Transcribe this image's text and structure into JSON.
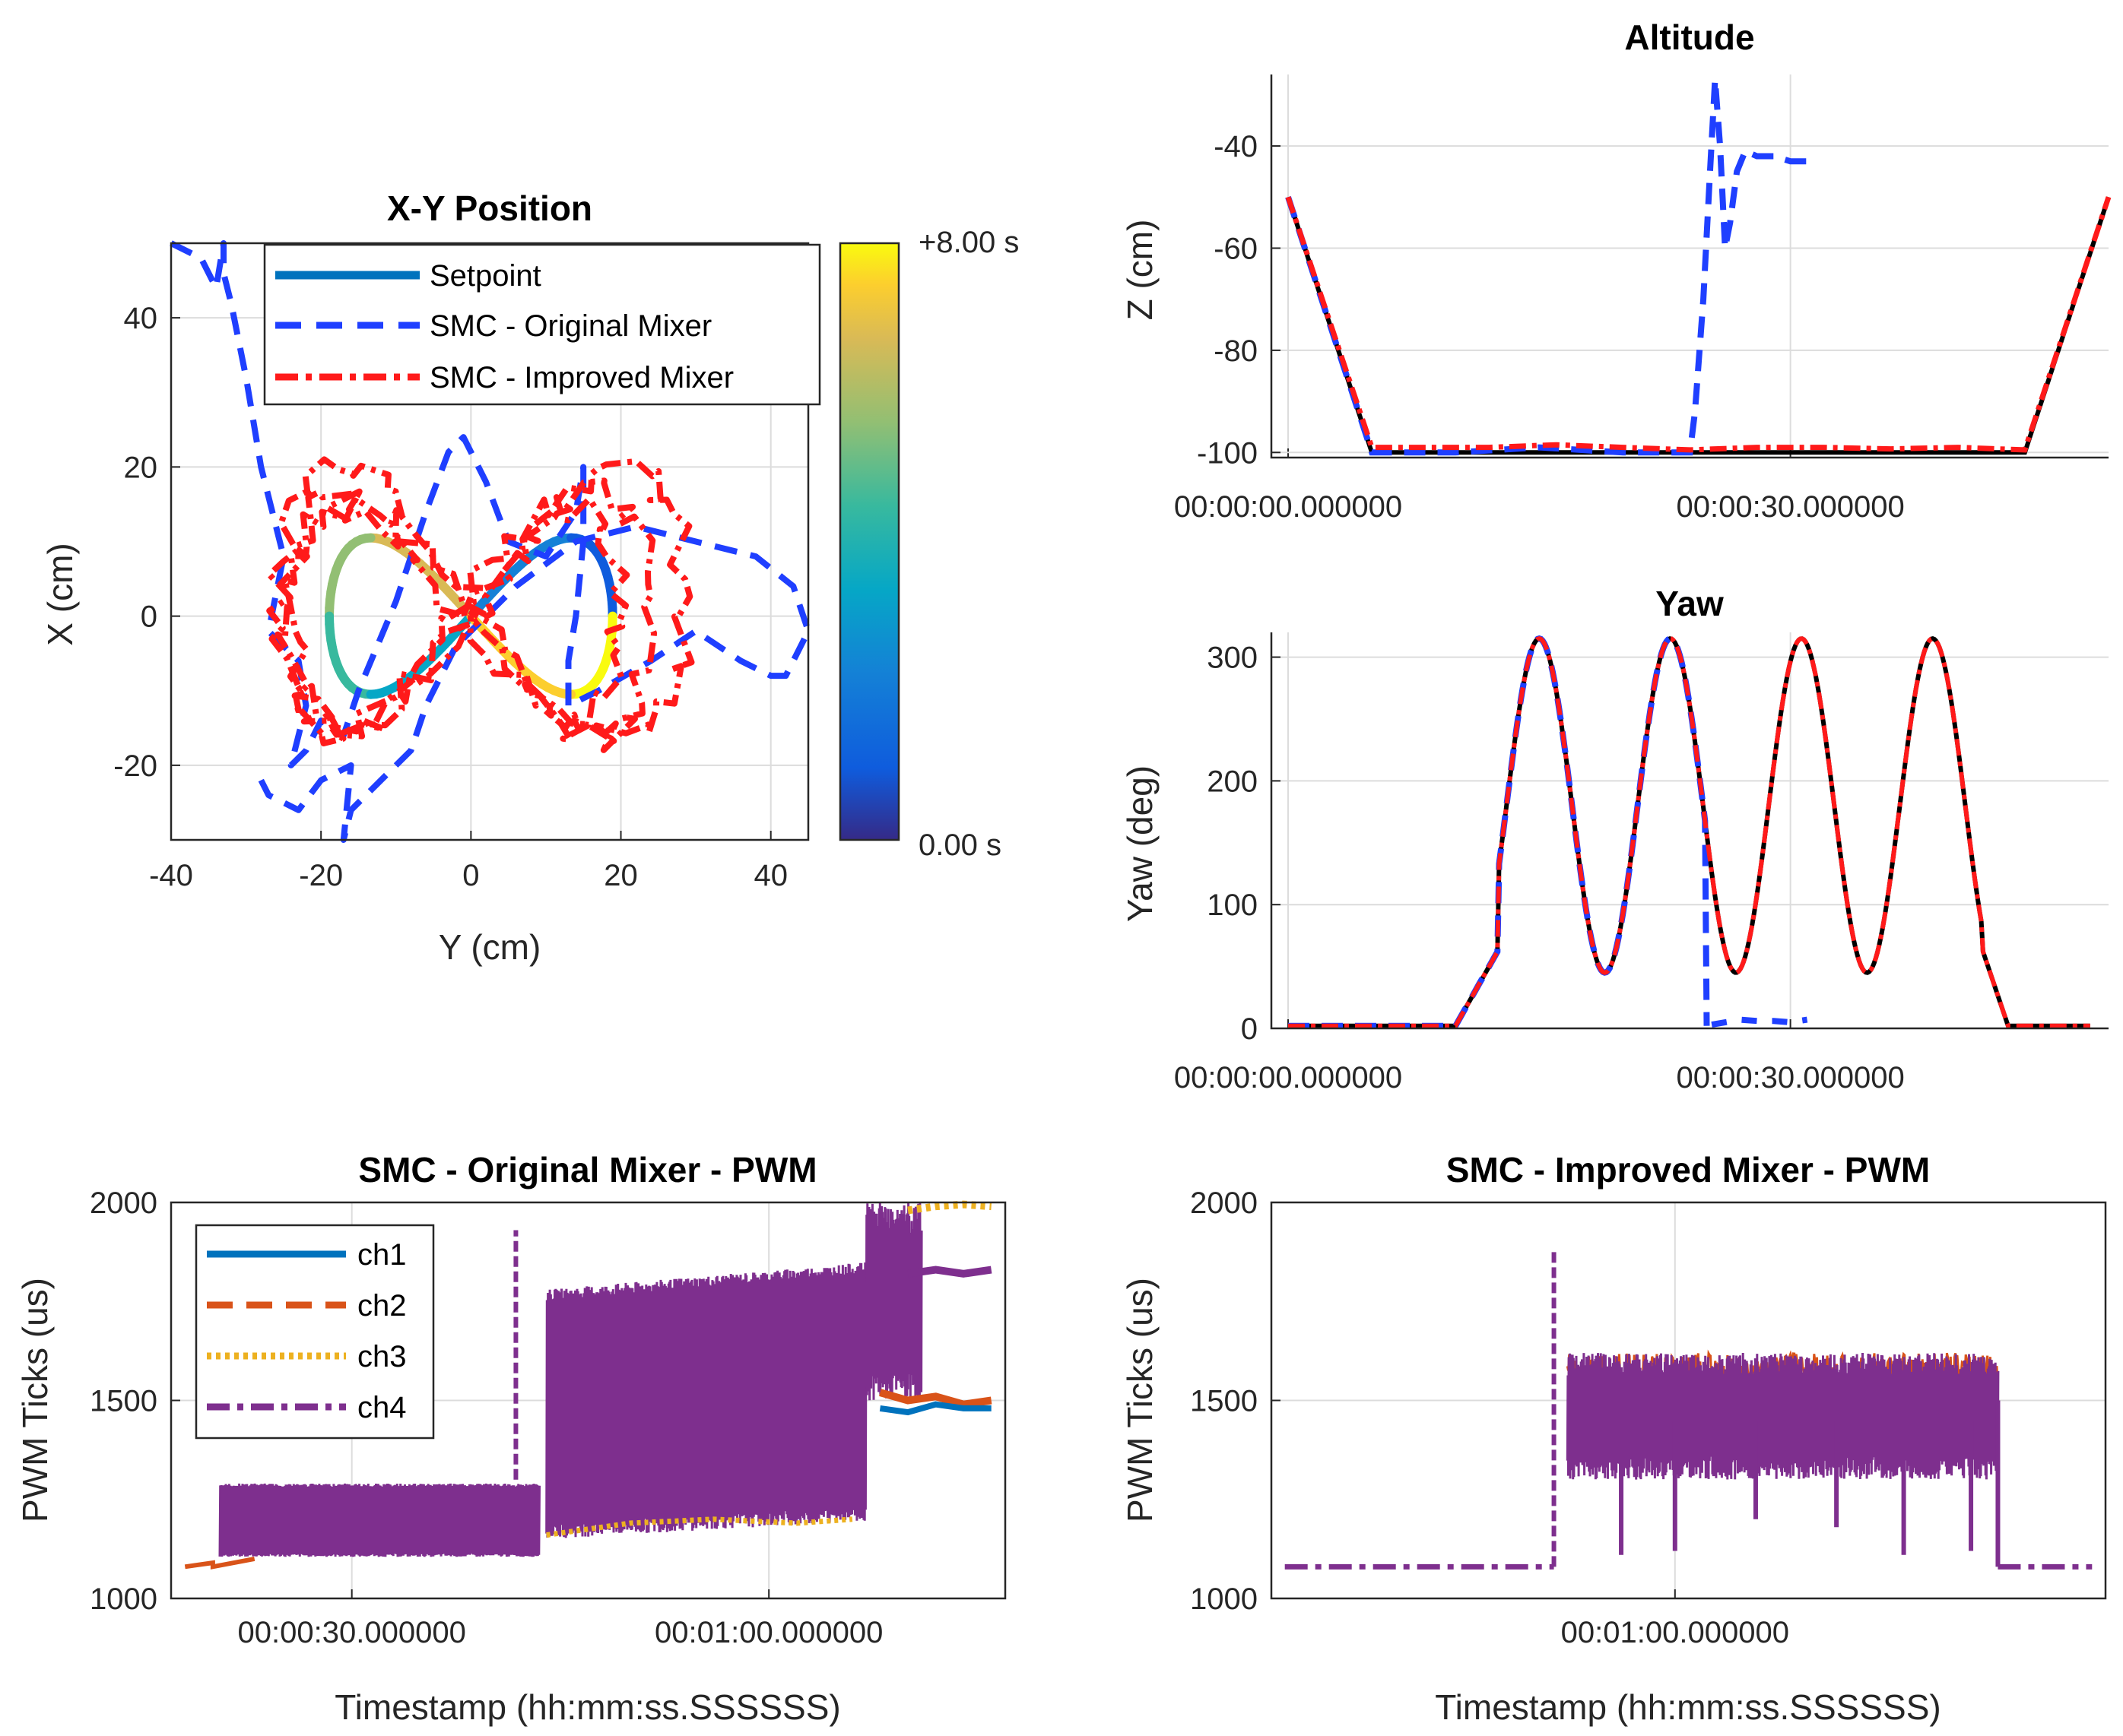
{
  "chart_data": [
    {
      "id": "xy",
      "type": "line",
      "title": "X-Y Position",
      "xlabel": "Y (cm)",
      "ylabel": "X (cm)",
      "xlim": [
        -40,
        45
      ],
      "ylim": [
        -30,
        50
      ],
      "xticks": [
        -40,
        -20,
        0,
        20,
        40
      ],
      "xtick_labels": [
        "-40",
        "-20",
        "0",
        "20",
        "40"
      ],
      "yticks": [
        -20,
        0,
        20,
        40
      ],
      "ytick_labels": [
        "-20",
        "0",
        "20",
        "40"
      ],
      "grid": true,
      "legend_position": "top",
      "colorbar": {
        "top_label": "+8.00 s",
        "bottom_label": "0.00 s",
        "colormap": "parula"
      },
      "series": [
        {
          "name": "Setpoint",
          "style": "solid",
          "color": "#0072BD",
          "kind": "lemniscate",
          "a": 30,
          "b": 10,
          "colored_by_time": true
        },
        {
          "name": "SMC - Original Mixer",
          "style": "dashed",
          "color": "#1f3fff",
          "x": [
            -40,
            -36,
            -34,
            -33,
            -33,
            -32,
            -30,
            -28,
            -25,
            -27,
            -23,
            -22,
            -24,
            -22,
            -20,
            -17,
            -15,
            -10,
            -6,
            -3,
            -1,
            2,
            5,
            10,
            14,
            15,
            15,
            14,
            13,
            13,
            17,
            24,
            30,
            36,
            40,
            42,
            45,
            43,
            38,
            30,
            22,
            14,
            6,
            -2,
            -6,
            -8,
            -12,
            -16,
            -17,
            -16,
            -20,
            -23,
            -27,
            -28
          ],
          "y": [
            50,
            48,
            44,
            50,
            46,
            42,
            32,
            20,
            8,
            -2,
            -6,
            -12,
            -20,
            -18,
            -14,
            -16,
            -10,
            2,
            14,
            22,
            24,
            18,
            10,
            8,
            14,
            20,
            10,
            0,
            -6,
            -12,
            -10,
            -6,
            -2,
            -6,
            -8,
            -8,
            -2,
            4,
            8,
            10,
            12,
            10,
            4,
            -4,
            -12,
            -18,
            -22,
            -26,
            -30,
            -20,
            -22,
            -26,
            -24,
            -22
          ]
        },
        {
          "name": "SMC - Improved Mixer",
          "style": "dashdot",
          "color": "#ff1a1a",
          "kind": "perturbed_lemniscate",
          "a": 30,
          "b": 10,
          "loops": 3
        }
      ]
    },
    {
      "id": "altitude",
      "type": "line",
      "title": "Altitude",
      "xlabel": "",
      "ylabel": "Z (cm)",
      "xlim": [
        -1,
        49
      ],
      "ylim": [
        -101,
        -26
      ],
      "xticks": [
        0,
        30
      ],
      "xtick_labels": [
        "00:00:00.000000",
        "00:00:30.000000"
      ],
      "yticks": [
        -100,
        -80,
        -60,
        -40
      ],
      "ytick_labels": [
        "-100",
        "-80",
        "-60",
        "-40"
      ],
      "grid": true,
      "series": [
        {
          "name": "Setpoint",
          "color": "#000000",
          "style": "solid",
          "x": [
            0,
            5,
            44,
            49
          ],
          "y": [
            -50,
            -100,
            -100,
            -50
          ]
        },
        {
          "name": "SMC - Original Mixer",
          "color": "#1f3fff",
          "style": "dashed",
          "x": [
            0,
            5,
            10,
            15,
            20,
            24,
            24.3,
            24.8,
            25.2,
            25.5,
            25.8,
            26.1,
            26.4,
            26.8,
            27.3,
            28,
            29,
            30,
            31
          ],
          "y": [
            -50,
            -100,
            -100,
            -99,
            -100,
            -100,
            -92,
            -70,
            -45,
            -27,
            -40,
            -60,
            -55,
            -45,
            -41,
            -42,
            -42,
            -43,
            -43
          ]
        },
        {
          "name": "SMC - Improved Mixer",
          "color": "#ff1a1a",
          "style": "dashdot",
          "x": [
            0,
            5,
            8,
            12,
            16,
            20,
            24,
            28,
            32,
            36,
            40,
            44,
            49
          ],
          "y": [
            -50,
            -99,
            -99,
            -99,
            -98.5,
            -99,
            -99.5,
            -99,
            -99,
            -99.3,
            -99,
            -99.5,
            -50
          ]
        }
      ]
    },
    {
      "id": "yaw",
      "type": "line",
      "title": "Yaw",
      "xlabel": "",
      "ylabel": "Yaw (deg)",
      "xlim": [
        -1,
        49
      ],
      "ylim": [
        0,
        320
      ],
      "xticks": [
        0,
        30
      ],
      "xtick_labels": [
        "00:00:00.000000",
        "00:00:30.000000"
      ],
      "yticks": [
        0,
        100,
        200,
        300
      ],
      "ytick_labels": [
        "0",
        "100",
        "200",
        "300"
      ],
      "grid": true,
      "series": [
        {
          "name": "Setpoint",
          "color": "#000000",
          "style": "solid",
          "kind": "yaw_oscillation",
          "start": 10,
          "end": 43,
          "peaks": [
            15,
            22.5,
            30.5,
            38.5
          ],
          "max": 315,
          "min": 45
        },
        {
          "name": "SMC - Original Mixer",
          "color": "#1f3fff",
          "style": "dashed",
          "kind": "yaw_oscillation_cut",
          "start": 10,
          "cut": 25,
          "after_x": [
            25.3,
            27,
            28,
            29,
            30,
            31
          ],
          "after_y": [
            3,
            7,
            6,
            6,
            5,
            7
          ]
        },
        {
          "name": "SMC - Improved Mixer",
          "color": "#ff1a1a",
          "style": "dashdot",
          "kind": "yaw_oscillation",
          "start": 10,
          "end": 43
        }
      ]
    },
    {
      "id": "pwm_original",
      "type": "line",
      "title": "SMC - Original Mixer - PWM",
      "xlabel": "Timestamp (hh:mm:ss.SSSSSS)",
      "ylabel": "PWM Ticks (us)",
      "xlim": [
        17,
        77
      ],
      "ylim": [
        1000,
        2000
      ],
      "xticks": [
        30,
        60
      ],
      "xtick_labels": [
        "00:00:30.000000",
        "00:01:00.000000"
      ],
      "yticks": [
        1000,
        1500,
        2000
      ],
      "ytick_labels": [
        "1000",
        "1500",
        "2000"
      ],
      "grid": true,
      "legend_position": "top-left",
      "series": [
        {
          "name": "ch1",
          "color": "#0072BD",
          "style": "solid"
        },
        {
          "name": "ch2",
          "color": "#D95319",
          "style": "dashed"
        },
        {
          "name": "ch3",
          "color": "#EDB120",
          "style": "dotted"
        },
        {
          "name": "ch4",
          "color": "#7E2F8E",
          "style": "dashdot"
        }
      ]
    },
    {
      "id": "pwm_improved",
      "type": "line",
      "title": "SMC - Improved Mixer - PWM",
      "xlabel": "Timestamp (hh:mm:ss.SSSSSS)",
      "ylabel": "PWM Ticks (us)",
      "xlim": [
        30,
        92
      ],
      "ylim": [
        1000,
        2000
      ],
      "xticks": [
        60
      ],
      "xtick_labels": [
        "00:01:00.000000"
      ],
      "yticks": [
        1000,
        1500,
        2000
      ],
      "ytick_labels": [
        "1000",
        "1500",
        "2000"
      ],
      "grid": true,
      "series": [
        {
          "name": "ch1",
          "color": "#0072BD",
          "style": "solid"
        },
        {
          "name": "ch2",
          "color": "#D95319",
          "style": "dashed"
        },
        {
          "name": "ch3",
          "color": "#EDB120",
          "style": "dotted"
        },
        {
          "name": "ch4",
          "color": "#7E2F8E",
          "style": "dashdot"
        }
      ]
    }
  ]
}
